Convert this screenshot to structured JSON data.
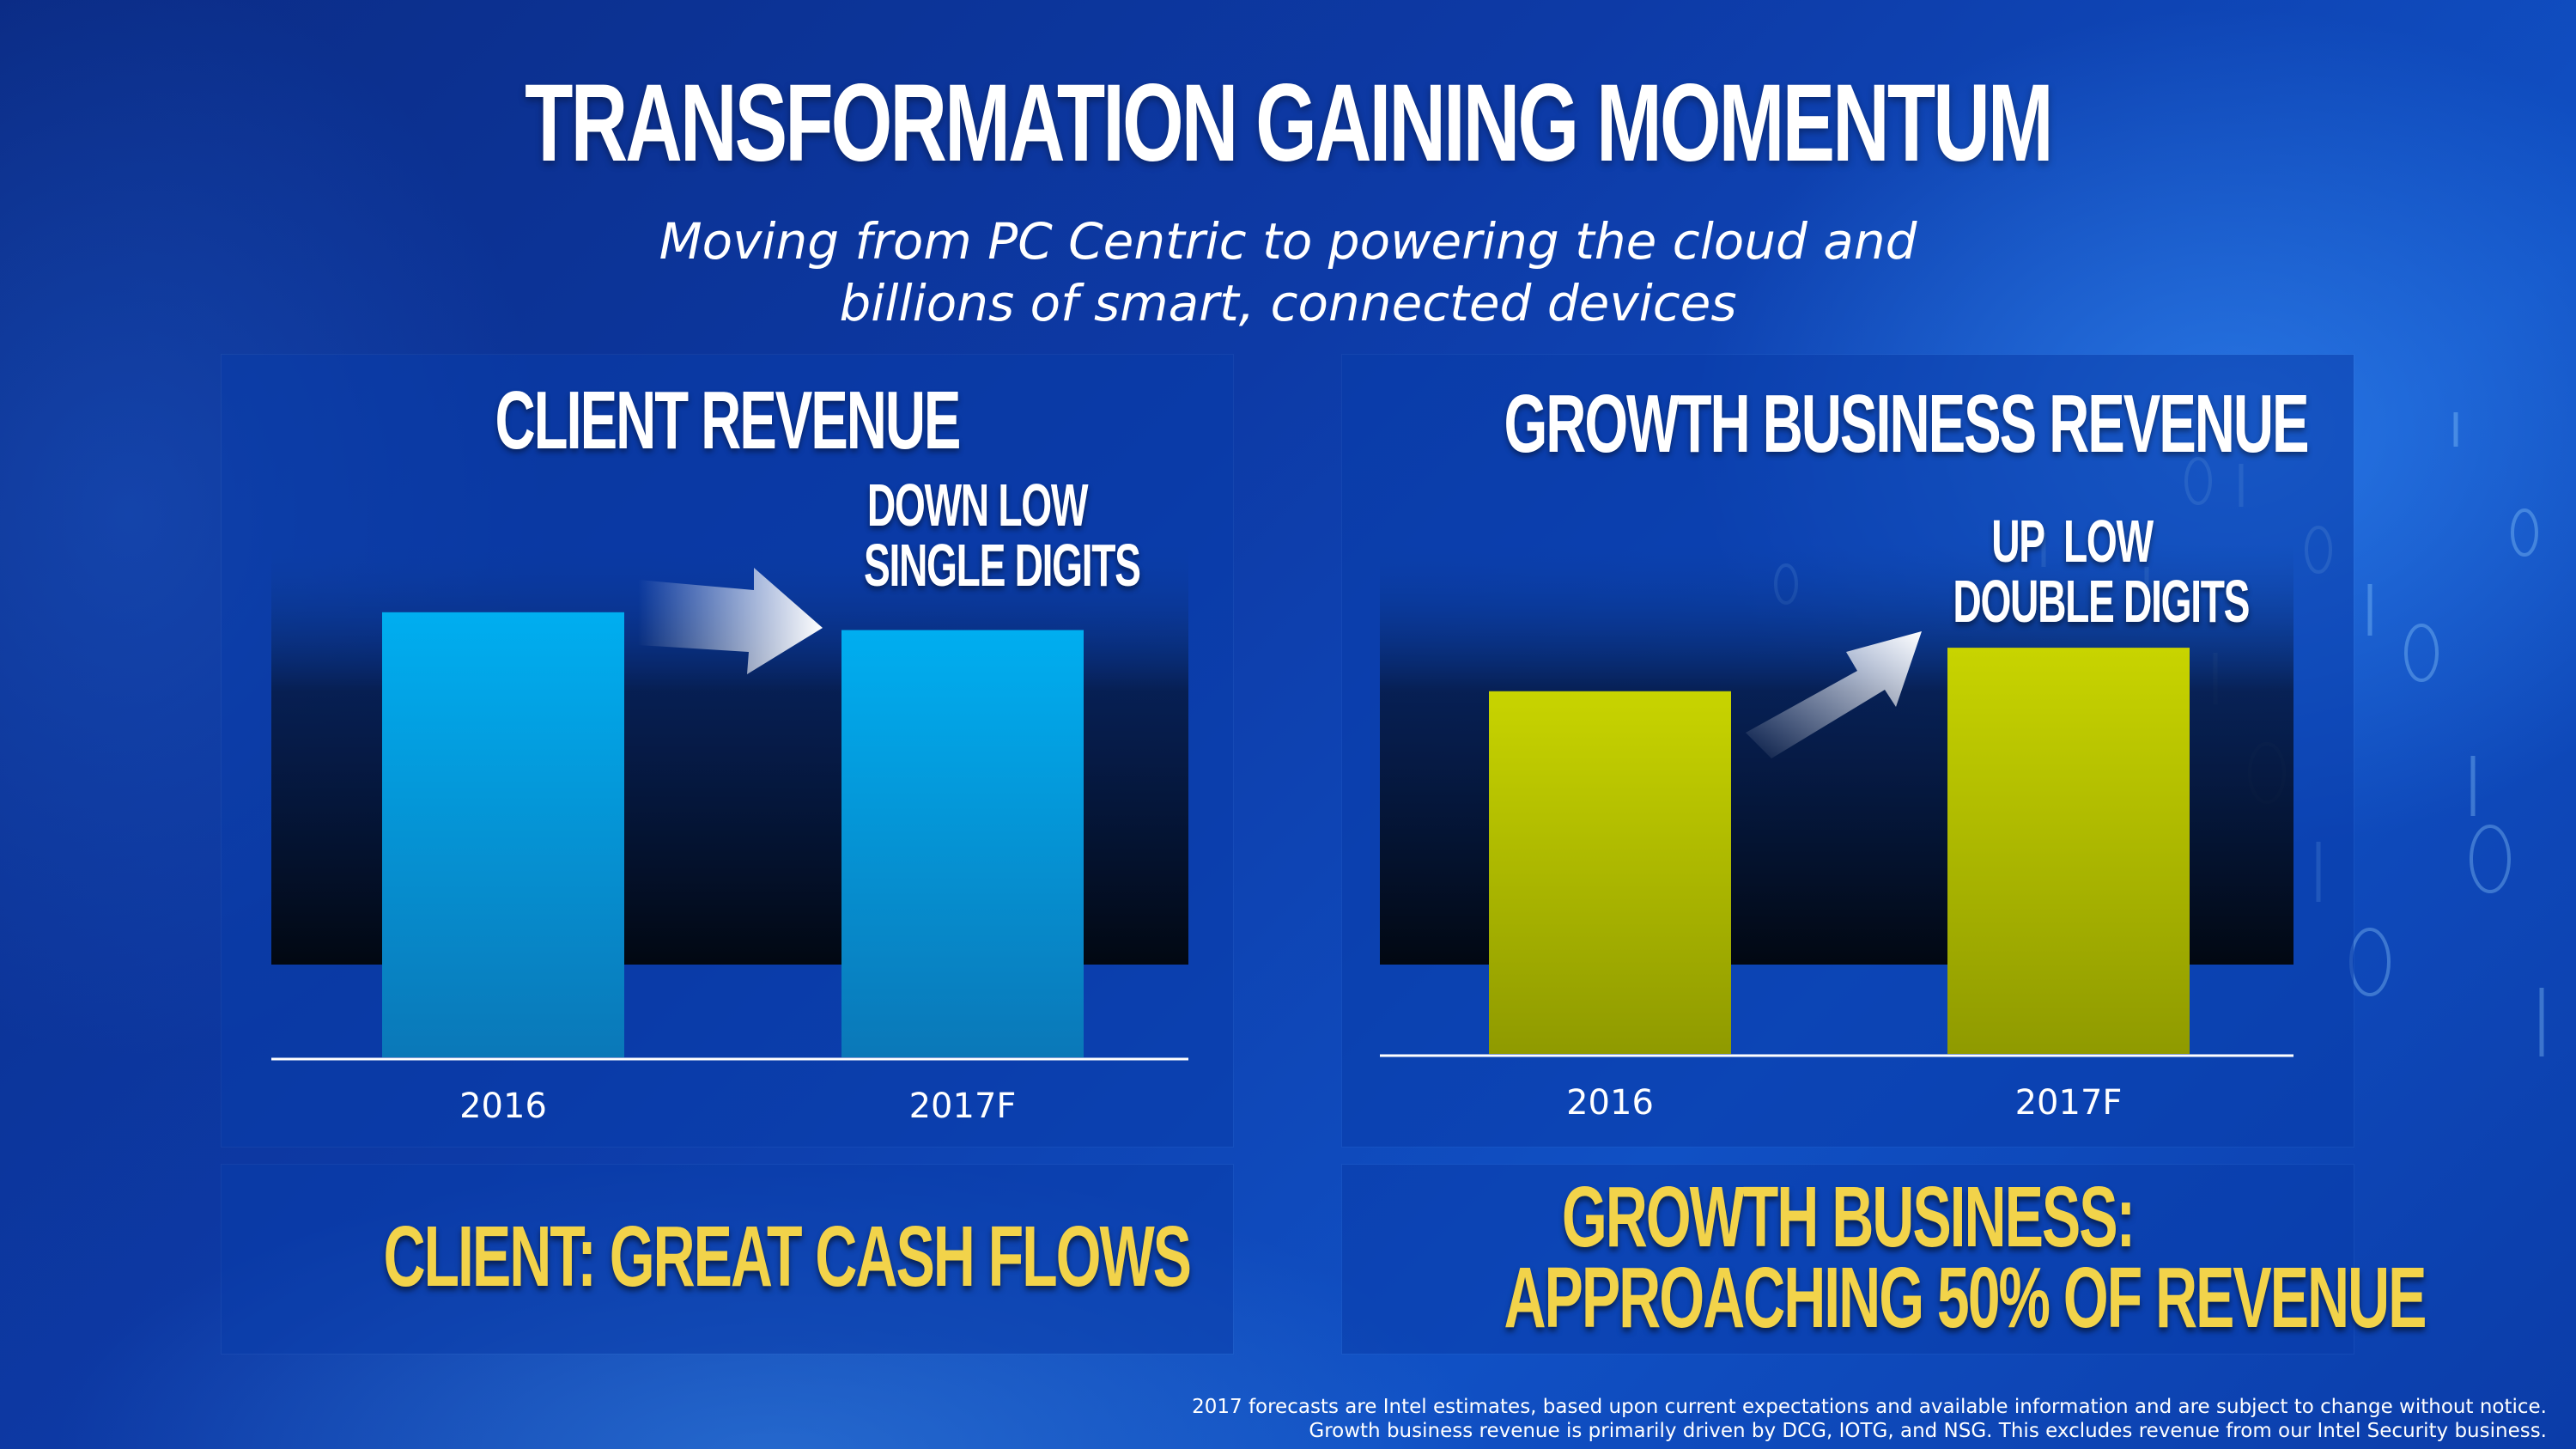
{
  "slide": {
    "title": "TRANSFORMATION GAINING MOMENTUM",
    "subtitle_line1": "Moving from PC Centric to powering the cloud and",
    "subtitle_line2": "billions of smart, connected devices",
    "disclaimer_line1": "2017 forecasts are Intel estimates, based upon current expectations and available information and are subject to change without notice.",
    "disclaimer_line2": "Growth business revenue is primarily driven by DCG, IOTG, and NSG. This excludes revenue from our Intel Security business."
  },
  "left_panel": {
    "annotation_line1": "DOWN LOW",
    "annotation_line2": "SINGLE DIGITS",
    "footer": "CLIENT: GREAT CASH FLOWS"
  },
  "right_panel": {
    "annotation_line1": "UP  LOW",
    "annotation_line2": "DOUBLE DIGITS",
    "footer_line1": "GROWTH BUSINESS:",
    "footer_line2": "APPROACHING 50% OF REVENUE"
  },
  "chart_data": [
    {
      "type": "bar",
      "title": "CLIENT REVENUE",
      "categories": [
        "2016",
        "2017F"
      ],
      "values": [
        100,
        96
      ],
      "ylim": [
        0,
        110
      ],
      "color": "#00aef0",
      "grid": false
    },
    {
      "type": "bar",
      "title": "GROWTH BUSINESS REVENUE",
      "categories": [
        "2016",
        "2017F"
      ],
      "values": [
        100,
        112
      ],
      "ylim": [
        0,
        135
      ],
      "color": "#c8d400",
      "grid": false
    }
  ]
}
